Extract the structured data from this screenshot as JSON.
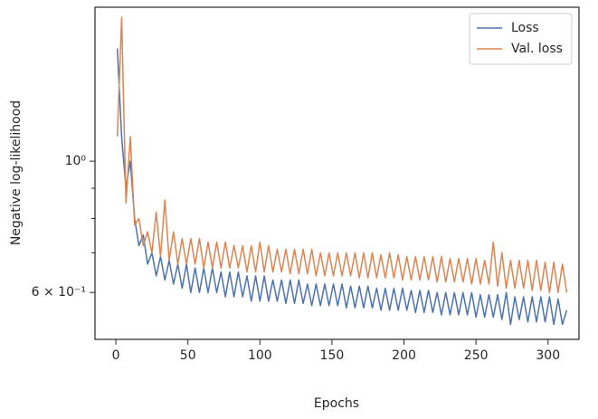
{
  "chart_data": {
    "type": "line",
    "xlabel": "Epochs",
    "ylabel": "Negative log-likelihood",
    "x": [
      1,
      4,
      7,
      10,
      13,
      16,
      19,
      22,
      25,
      28,
      31,
      34,
      37,
      40,
      43,
      46,
      49,
      52,
      55,
      58,
      61,
      64,
      67,
      70,
      73,
      76,
      79,
      82,
      85,
      88,
      91,
      94,
      97,
      100,
      103,
      106,
      109,
      112,
      115,
      118,
      121,
      124,
      127,
      130,
      133,
      136,
      139,
      142,
      145,
      148,
      151,
      154,
      157,
      160,
      163,
      166,
      169,
      172,
      175,
      178,
      181,
      184,
      187,
      190,
      193,
      196,
      199,
      202,
      205,
      208,
      211,
      214,
      217,
      220,
      223,
      226,
      229,
      232,
      235,
      238,
      241,
      244,
      247,
      250,
      253,
      256,
      259,
      262,
      265,
      268,
      271,
      274,
      277,
      280,
      283,
      286,
      289,
      292,
      295,
      298,
      301,
      304,
      307,
      310,
      313
    ],
    "series": [
      {
        "name": "Loss",
        "color": "#4c72b0",
        "values": [
          1.55,
          1.1,
          0.9,
          1.0,
          0.8,
          0.72,
          0.75,
          0.67,
          0.7,
          0.64,
          0.69,
          0.63,
          0.68,
          0.62,
          0.67,
          0.61,
          0.67,
          0.6,
          0.66,
          0.6,
          0.66,
          0.6,
          0.66,
          0.6,
          0.65,
          0.59,
          0.65,
          0.59,
          0.65,
          0.59,
          0.64,
          0.58,
          0.64,
          0.58,
          0.64,
          0.58,
          0.63,
          0.58,
          0.63,
          0.575,
          0.63,
          0.575,
          0.63,
          0.575,
          0.62,
          0.57,
          0.62,
          0.57,
          0.62,
          0.57,
          0.62,
          0.57,
          0.62,
          0.565,
          0.615,
          0.565,
          0.615,
          0.565,
          0.615,
          0.565,
          0.61,
          0.56,
          0.61,
          0.56,
          0.61,
          0.56,
          0.61,
          0.56,
          0.605,
          0.555,
          0.605,
          0.555,
          0.605,
          0.555,
          0.6,
          0.55,
          0.6,
          0.55,
          0.6,
          0.55,
          0.6,
          0.55,
          0.6,
          0.545,
          0.595,
          0.545,
          0.595,
          0.545,
          0.595,
          0.54,
          0.6,
          0.53,
          0.59,
          0.54,
          0.59,
          0.535,
          0.59,
          0.535,
          0.59,
          0.535,
          0.59,
          0.53,
          0.585,
          0.53,
          0.56
        ]
      },
      {
        "name": "Val. loss",
        "color": "#dd8452",
        "values": [
          1.1,
          1.75,
          0.85,
          1.1,
          0.78,
          0.8,
          0.72,
          0.76,
          0.7,
          0.82,
          0.69,
          0.86,
          0.68,
          0.76,
          0.67,
          0.74,
          0.67,
          0.74,
          0.67,
          0.74,
          0.66,
          0.73,
          0.66,
          0.73,
          0.66,
          0.73,
          0.66,
          0.72,
          0.66,
          0.72,
          0.65,
          0.72,
          0.65,
          0.73,
          0.65,
          0.72,
          0.65,
          0.71,
          0.65,
          0.71,
          0.645,
          0.71,
          0.645,
          0.71,
          0.645,
          0.71,
          0.64,
          0.7,
          0.64,
          0.7,
          0.64,
          0.7,
          0.64,
          0.7,
          0.64,
          0.7,
          0.635,
          0.7,
          0.635,
          0.7,
          0.635,
          0.695,
          0.635,
          0.7,
          0.635,
          0.695,
          0.63,
          0.69,
          0.63,
          0.69,
          0.63,
          0.69,
          0.63,
          0.69,
          0.625,
          0.69,
          0.625,
          0.685,
          0.625,
          0.685,
          0.625,
          0.685,
          0.62,
          0.685,
          0.62,
          0.68,
          0.62,
          0.73,
          0.615,
          0.7,
          0.61,
          0.68,
          0.61,
          0.68,
          0.61,
          0.68,
          0.605,
          0.68,
          0.605,
          0.675,
          0.6,
          0.675,
          0.6,
          0.67,
          0.6
        ]
      }
    ],
    "xlim": [
      -14.5,
      321.5
    ],
    "xticks": [
      0,
      50,
      100,
      150,
      200,
      250,
      300
    ],
    "ylim": [
      0.5,
      1.82
    ],
    "log_y": true,
    "yticks": [
      {
        "value": 1,
        "label": "10⁰"
      },
      {
        "value": 0.6,
        "label": "6 × 10⁻¹"
      }
    ],
    "yminorticks": [
      0.9,
      0.8,
      0.7
    ],
    "legend": "upper right"
  }
}
